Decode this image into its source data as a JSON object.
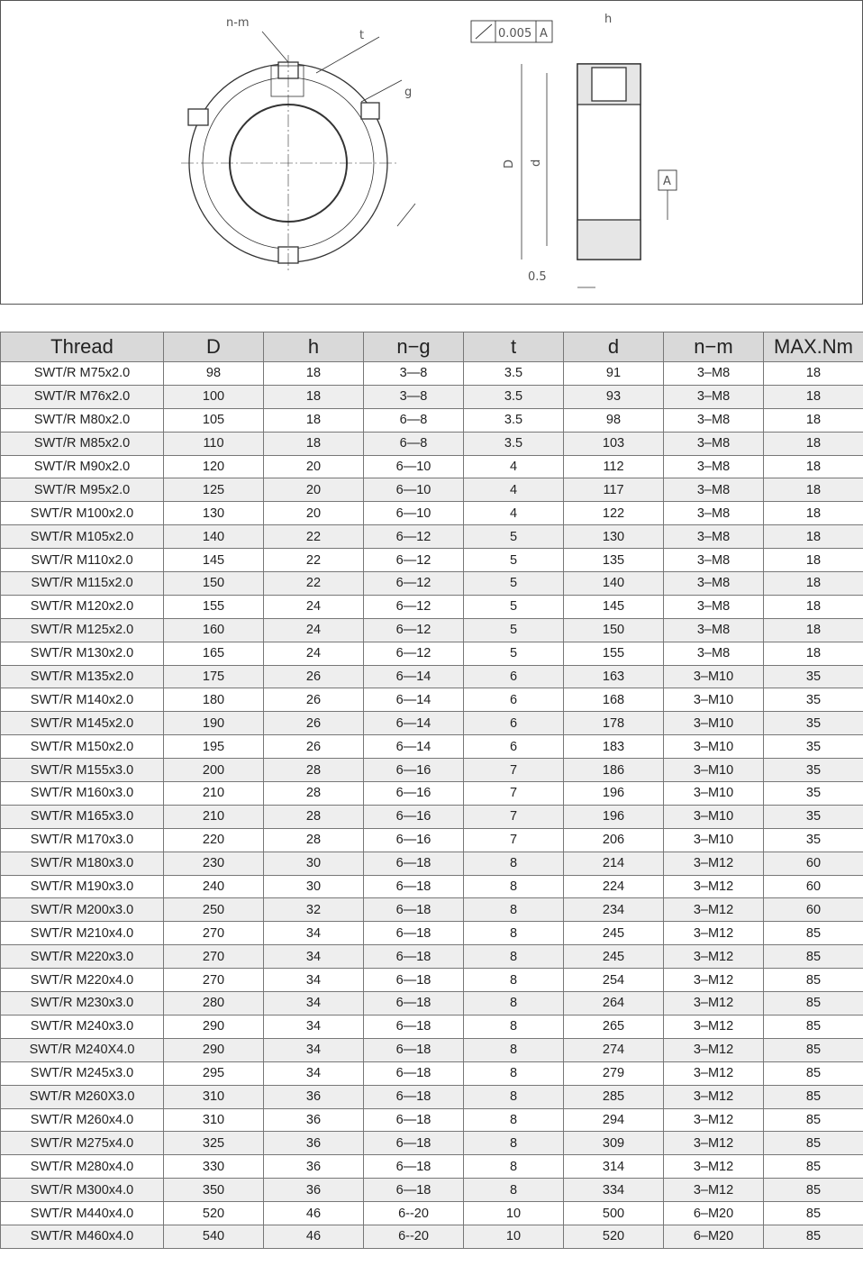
{
  "drawing": {
    "labels": {
      "n_m": "n-m",
      "t": "t",
      "g": "g",
      "tolerance": "0.005",
      "datum": "A",
      "h": "h",
      "D": "D",
      "d": "d",
      "chamfer": "0.5",
      "datum_ref": "A"
    }
  },
  "table": {
    "headers": [
      "Thread",
      "D",
      "h",
      "n−g",
      "t",
      "d",
      "n−m",
      "MAX.Nm"
    ],
    "rows": [
      [
        "SWT/R M75x2.0",
        "98",
        "18",
        "3—8",
        "3.5",
        "91",
        "3–M8",
        "18"
      ],
      [
        "SWT/R M76x2.0",
        "100",
        "18",
        "3—8",
        "3.5",
        "93",
        "3–M8",
        "18"
      ],
      [
        "SWT/R M80x2.0",
        "105",
        "18",
        "6—8",
        "3.5",
        "98",
        "3–M8",
        "18"
      ],
      [
        "SWT/R M85x2.0",
        "110",
        "18",
        "6—8",
        "3.5",
        "103",
        "3–M8",
        "18"
      ],
      [
        "SWT/R M90x2.0",
        "120",
        "20",
        "6—10",
        "4",
        "112",
        "3–M8",
        "18"
      ],
      [
        "SWT/R M95x2.0",
        "125",
        "20",
        "6—10",
        "4",
        "117",
        "3–M8",
        "18"
      ],
      [
        "SWT/R M100x2.0",
        "130",
        "20",
        "6—10",
        "4",
        "122",
        "3–M8",
        "18"
      ],
      [
        "SWT/R M105x2.0",
        "140",
        "22",
        "6—12",
        "5",
        "130",
        "3–M8",
        "18"
      ],
      [
        "SWT/R M110x2.0",
        "145",
        "22",
        "6—12",
        "5",
        "135",
        "3–M8",
        "18"
      ],
      [
        "SWT/R M115x2.0",
        "150",
        "22",
        "6—12",
        "5",
        "140",
        "3–M8",
        "18"
      ],
      [
        "SWT/R M120x2.0",
        "155",
        "24",
        "6—12",
        "5",
        "145",
        "3–M8",
        "18"
      ],
      [
        "SWT/R M125x2.0",
        "160",
        "24",
        "6—12",
        "5",
        "150",
        "3–M8",
        "18"
      ],
      [
        "SWT/R M130x2.0",
        "165",
        "24",
        "6—12",
        "5",
        "155",
        "3–M8",
        "18"
      ],
      [
        "SWT/R M135x2.0",
        "175",
        "26",
        "6—14",
        "6",
        "163",
        "3–M10",
        "35"
      ],
      [
        "SWT/R M140x2.0",
        "180",
        "26",
        "6—14",
        "6",
        "168",
        "3–M10",
        "35"
      ],
      [
        "SWT/R M145x2.0",
        "190",
        "26",
        "6—14",
        "6",
        "178",
        "3–M10",
        "35"
      ],
      [
        "SWT/R M150x2.0",
        "195",
        "26",
        "6—14",
        "6",
        "183",
        "3–M10",
        "35"
      ],
      [
        "SWT/R M155x3.0",
        "200",
        "28",
        "6—16",
        "7",
        "186",
        "3–M10",
        "35"
      ],
      [
        "SWT/R M160x3.0",
        "210",
        "28",
        "6—16",
        "7",
        "196",
        "3–M10",
        "35"
      ],
      [
        "SWT/R M165x3.0",
        "210",
        "28",
        "6—16",
        "7",
        "196",
        "3–M10",
        "35"
      ],
      [
        "SWT/R M170x3.0",
        "220",
        "28",
        "6—16",
        "7",
        "206",
        "3–M10",
        "35"
      ],
      [
        "SWT/R M180x3.0",
        "230",
        "30",
        "6—18",
        "8",
        "214",
        "3–M12",
        "60"
      ],
      [
        "SWT/R M190x3.0",
        "240",
        "30",
        "6—18",
        "8",
        "224",
        "3–M12",
        "60"
      ],
      [
        "SWT/R M200x3.0",
        "250",
        "32",
        "6—18",
        "8",
        "234",
        "3–M12",
        "60"
      ],
      [
        "SWT/R M210x4.0",
        "270",
        "34",
        "6—18",
        "8",
        "245",
        "3–M12",
        "85"
      ],
      [
        "SWT/R M220x3.0",
        "270",
        "34",
        "6—18",
        "8",
        "245",
        "3–M12",
        "85"
      ],
      [
        "SWT/R M220x4.0",
        "270",
        "34",
        "6—18",
        "8",
        "254",
        "3–M12",
        "85"
      ],
      [
        "SWT/R M230x3.0",
        "280",
        "34",
        "6—18",
        "8",
        "264",
        "3–M12",
        "85"
      ],
      [
        "SWT/R M240x3.0",
        "290",
        "34",
        "6—18",
        "8",
        "265",
        "3–M12",
        "85"
      ],
      [
        "SWT/R M240X4.0",
        "290",
        "34",
        "6—18",
        "8",
        "274",
        "3–M12",
        "85"
      ],
      [
        "SWT/R M245x3.0",
        "295",
        "34",
        "6—18",
        "8",
        "279",
        "3–M12",
        "85"
      ],
      [
        "SWT/R M260X3.0",
        "310",
        "36",
        "6—18",
        "8",
        "285",
        "3–M12",
        "85"
      ],
      [
        "SWT/R M260x4.0",
        "310",
        "36",
        "6—18",
        "8",
        "294",
        "3–M12",
        "85"
      ],
      [
        "SWT/R M275x4.0",
        "325",
        "36",
        "6—18",
        "8",
        "309",
        "3–M12",
        "85"
      ],
      [
        "SWT/R M280x4.0",
        "330",
        "36",
        "6—18",
        "8",
        "314",
        "3–M12",
        "85"
      ],
      [
        "SWT/R M300x4.0",
        "350",
        "36",
        "6—18",
        "8",
        "334",
        "3–M12",
        "85"
      ],
      [
        "SWT/R M440x4.0",
        "520",
        "46",
        "6--20",
        "10",
        "500",
        "6–M20",
        "85"
      ],
      [
        "SWT/R M460x4.0",
        "540",
        "46",
        "6--20",
        "10",
        "520",
        "6–M20",
        "85"
      ]
    ]
  }
}
